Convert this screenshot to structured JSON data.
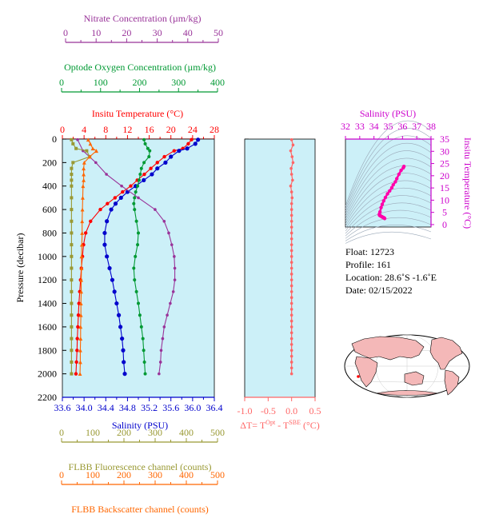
{
  "axes": {
    "nitrate": {
      "label": "Nitrate Concentration (µm/kg)",
      "min": 0,
      "max": 50,
      "ticks": [
        0,
        10,
        20,
        30,
        40,
        50
      ],
      "color": "#993399"
    },
    "oxygen": {
      "label": "Optode Oxygen Concentration (µm/kg)",
      "min": 0,
      "max": 400,
      "ticks": [
        0,
        100,
        200,
        300,
        400
      ],
      "color": "#009933"
    },
    "temperature": {
      "label": "Insitu Temperature (°C)",
      "min": 0,
      "max": 28,
      "ticks": [
        0,
        4,
        8,
        12,
        16,
        20,
        24,
        28
      ],
      "color": "#ff0000"
    },
    "pressure": {
      "label": "Pressure (decibar)",
      "min": 0,
      "max": 2200,
      "ticks": [
        0,
        200,
        400,
        600,
        800,
        1000,
        1200,
        1400,
        1600,
        1800,
        2000,
        2200
      ],
      "color": "#000000"
    },
    "salinity": {
      "label": "Salinity (PSU)",
      "min": 33.6,
      "max": 36.4,
      "ticks": [
        "33.6",
        "34.0",
        "34.4",
        "34.8",
        "35.2",
        "35.6",
        "36.0",
        "36.4"
      ],
      "color": "#0000cc"
    },
    "fluorescence": {
      "label": "FLBB Fluorescence channel (counts)",
      "min": 0,
      "max": 500,
      "ticks": [
        0,
        100,
        200,
        300,
        400,
        500
      ],
      "color": "#999933"
    },
    "backscatter": {
      "label": "FLBB Backscatter channel (counts)",
      "min": 0,
      "max": 500,
      "ticks": [
        0,
        100,
        200,
        300,
        400,
        500
      ],
      "color": "#ff6600"
    },
    "delta_t": {
      "label_prefix": "ΔT= T",
      "sup_opt": "Opt",
      "label_mid": " - T",
      "sup_sbe": "SBE",
      "label_suffix": " (°C)",
      "min": -1.0,
      "max": 0.5,
      "ticks": [
        "-1.0",
        "-0.5",
        "0.0",
        "0.5"
      ],
      "color": "#ff6666"
    },
    "ts_salinity": {
      "label": "Salinity (PSU)",
      "min": 32,
      "max": 38,
      "ticks": [
        32,
        33,
        34,
        35,
        36,
        37,
        38
      ],
      "color": "#cc00cc"
    },
    "ts_temperature": {
      "label": "Insitu Temperature (°C)",
      "min": -1,
      "max": 35,
      "ticks": [
        0,
        5,
        10,
        15,
        20,
        25,
        30,
        35
      ],
      "color": "#cc00cc"
    }
  },
  "info": {
    "float": "Float:  12723",
    "profile": "Profile:  161",
    "location": "Location:  28.6˚S  -1.6˚E",
    "date": "Date:  02/15/2022"
  },
  "colors": {
    "panel_bg": "#ccf0f8",
    "temperature": "#ff0000",
    "salinity": "#0000cc",
    "oxygen": "#009933",
    "nitrate": "#993399",
    "fluorescence": "#999933",
    "backscatter": "#ff6600",
    "delta_t": "#ff6666",
    "ts": "#ff00aa",
    "land": "#f4b8b8",
    "map_ocean": "#ffffff"
  },
  "chart_data": [
    {
      "type": "line",
      "panel": "main-profile",
      "series": [
        {
          "key": "temperature",
          "x_axis": "temperature",
          "pressure": [
            5,
            40,
            80,
            100,
            150,
            200,
            250,
            300,
            350,
            400,
            450,
            500,
            550,
            600,
            700,
            800,
            900,
            1000,
            1100,
            1200,
            1300,
            1400,
            1500,
            1600,
            1700,
            1800,
            1900,
            2000
          ],
          "values": [
            23.8,
            23.2,
            22.2,
            20.6,
            18.8,
            17.5,
            16.3,
            15.1,
            13.8,
            12.6,
            11.1,
            9.7,
            8.3,
            7.0,
            5.2,
            4.3,
            3.9,
            3.7,
            3.5,
            3.35,
            3.2,
            3.05,
            2.95,
            2.85,
            2.75,
            2.7,
            2.6,
            2.5
          ]
        },
        {
          "key": "salinity",
          "x_axis": "salinity",
          "pressure": [
            5,
            40,
            80,
            100,
            150,
            200,
            250,
            300,
            350,
            400,
            450,
            500,
            550,
            600,
            700,
            800,
            900,
            1000,
            1100,
            1200,
            1300,
            1400,
            1500,
            1600,
            1700,
            1800,
            1900,
            2000
          ],
          "values": [
            36.1,
            36.05,
            35.9,
            35.75,
            35.6,
            35.5,
            35.35,
            35.25,
            35.1,
            34.95,
            34.8,
            34.68,
            34.58,
            34.5,
            34.42,
            34.38,
            34.38,
            34.42,
            34.47,
            34.52,
            34.56,
            34.6,
            34.64,
            34.67,
            34.7,
            34.72,
            34.73,
            34.75
          ]
        },
        {
          "key": "oxygen",
          "x_axis": "oxygen",
          "pressure": [
            5,
            40,
            80,
            100,
            150,
            200,
            250,
            300,
            350,
            400,
            450,
            500,
            550,
            600,
            700,
            800,
            900,
            1000,
            1100,
            1200,
            1300,
            1400,
            1500,
            1600,
            1700,
            1800,
            1900,
            2000
          ],
          "values": [
            215,
            218,
            225,
            230,
            228,
            215,
            208,
            205,
            202,
            198,
            193,
            190,
            188,
            190,
            195,
            200,
            198,
            192,
            188,
            190,
            195,
            200,
            204,
            208,
            212,
            214,
            216,
            218
          ]
        },
        {
          "key": "nitrate",
          "x_axis": "nitrate",
          "pressure": [
            5,
            100,
            200,
            300,
            400,
            500,
            600,
            700,
            800,
            900,
            1000,
            1100,
            1200,
            1300,
            1400,
            1500,
            1600,
            1700,
            1800,
            1900,
            2000
          ],
          "values": [
            5.0,
            6.8,
            11.0,
            14.5,
            19.5,
            25.0,
            30.5,
            33.5,
            35.0,
            36.0,
            36.8,
            37.0,
            37.0,
            36.5,
            35.5,
            34.5,
            33.5,
            33.0,
            32.5,
            32.3,
            31.8
          ]
        },
        {
          "key": "fluorescence",
          "x_axis": "fluorescence",
          "pressure": [
            5,
            40,
            80,
            100,
            150,
            200,
            250,
            300,
            350,
            400,
            500,
            600,
            700,
            800,
            900,
            1000,
            1100,
            1200,
            1300,
            1400,
            1500,
            1600,
            1700,
            1800,
            1900,
            2000
          ],
          "values": [
            30,
            35,
            45,
            80,
            90,
            35,
            30,
            30,
            30,
            30,
            30,
            30,
            30,
            30,
            30,
            30,
            30,
            30,
            30,
            30,
            30,
            30,
            30,
            30,
            30,
            30
          ]
        },
        {
          "key": "backscatter",
          "x_axis": "backscatter",
          "pressure": [
            5,
            40,
            80,
            100,
            150,
            200,
            250,
            300,
            350,
            400,
            500,
            600,
            700,
            800,
            900,
            1000,
            1100,
            1200,
            1300,
            1400,
            1500,
            1600,
            1700,
            1800,
            1900,
            2000
          ],
          "values": [
            85,
            92,
            100,
            112,
            90,
            72,
            70,
            70,
            70,
            68,
            67,
            66,
            65,
            65,
            64,
            63,
            63,
            62,
            62,
            61,
            61,
            60,
            60,
            59,
            59,
            58
          ]
        }
      ]
    },
    {
      "type": "line",
      "panel": "delta-t",
      "x_axis": "delta_t",
      "pressure": [
        5,
        50,
        100,
        150,
        200,
        250,
        300,
        350,
        400,
        450,
        500,
        550,
        600,
        650,
        700,
        750,
        800,
        850,
        900,
        950,
        1000,
        1050,
        1100,
        1150,
        1200,
        1250,
        1300,
        1350,
        1400,
        1450,
        1500,
        1550,
        1600,
        1650,
        1700,
        1750,
        1800,
        1850,
        1900,
        1950,
        2000
      ],
      "values": [
        0.0,
        0.03,
        -0.02,
        0.01,
        0.03,
        -0.01,
        0.0,
        0.02,
        -0.02,
        0.0,
        0.01,
        0.0,
        0.0,
        0.0,
        0.0,
        0.0,
        0.0,
        0.0,
        0.0,
        0.0,
        0.0,
        0.0,
        0.0,
        0.0,
        0.0,
        0.0,
        0.0,
        0.0,
        0.0,
        0.0,
        0.0,
        0.0,
        0.0,
        0.0,
        0.0,
        0.0,
        0.0,
        0.0,
        0.0,
        0.0,
        0.0
      ]
    },
    {
      "type": "scatter",
      "panel": "ts-diagram",
      "x_axis": "ts_salinity",
      "y_axis": "ts_temperature",
      "x": [
        36.1,
        36.05,
        35.9,
        35.75,
        35.6,
        35.5,
        35.35,
        35.25,
        35.1,
        34.95,
        34.8,
        34.68,
        34.58,
        34.5,
        34.42,
        34.38,
        34.38,
        34.42,
        34.47,
        34.52,
        34.56,
        34.6,
        34.64,
        34.67,
        34.7,
        34.72,
        34.73,
        34.75
      ],
      "y": [
        23.8,
        23.2,
        22.2,
        20.6,
        18.8,
        17.5,
        16.3,
        15.1,
        13.8,
        12.6,
        11.1,
        9.7,
        8.3,
        7.0,
        5.2,
        4.3,
        3.9,
        3.7,
        3.5,
        3.35,
        3.2,
        3.05,
        2.95,
        2.85,
        2.75,
        2.7,
        2.6,
        2.5
      ]
    }
  ]
}
